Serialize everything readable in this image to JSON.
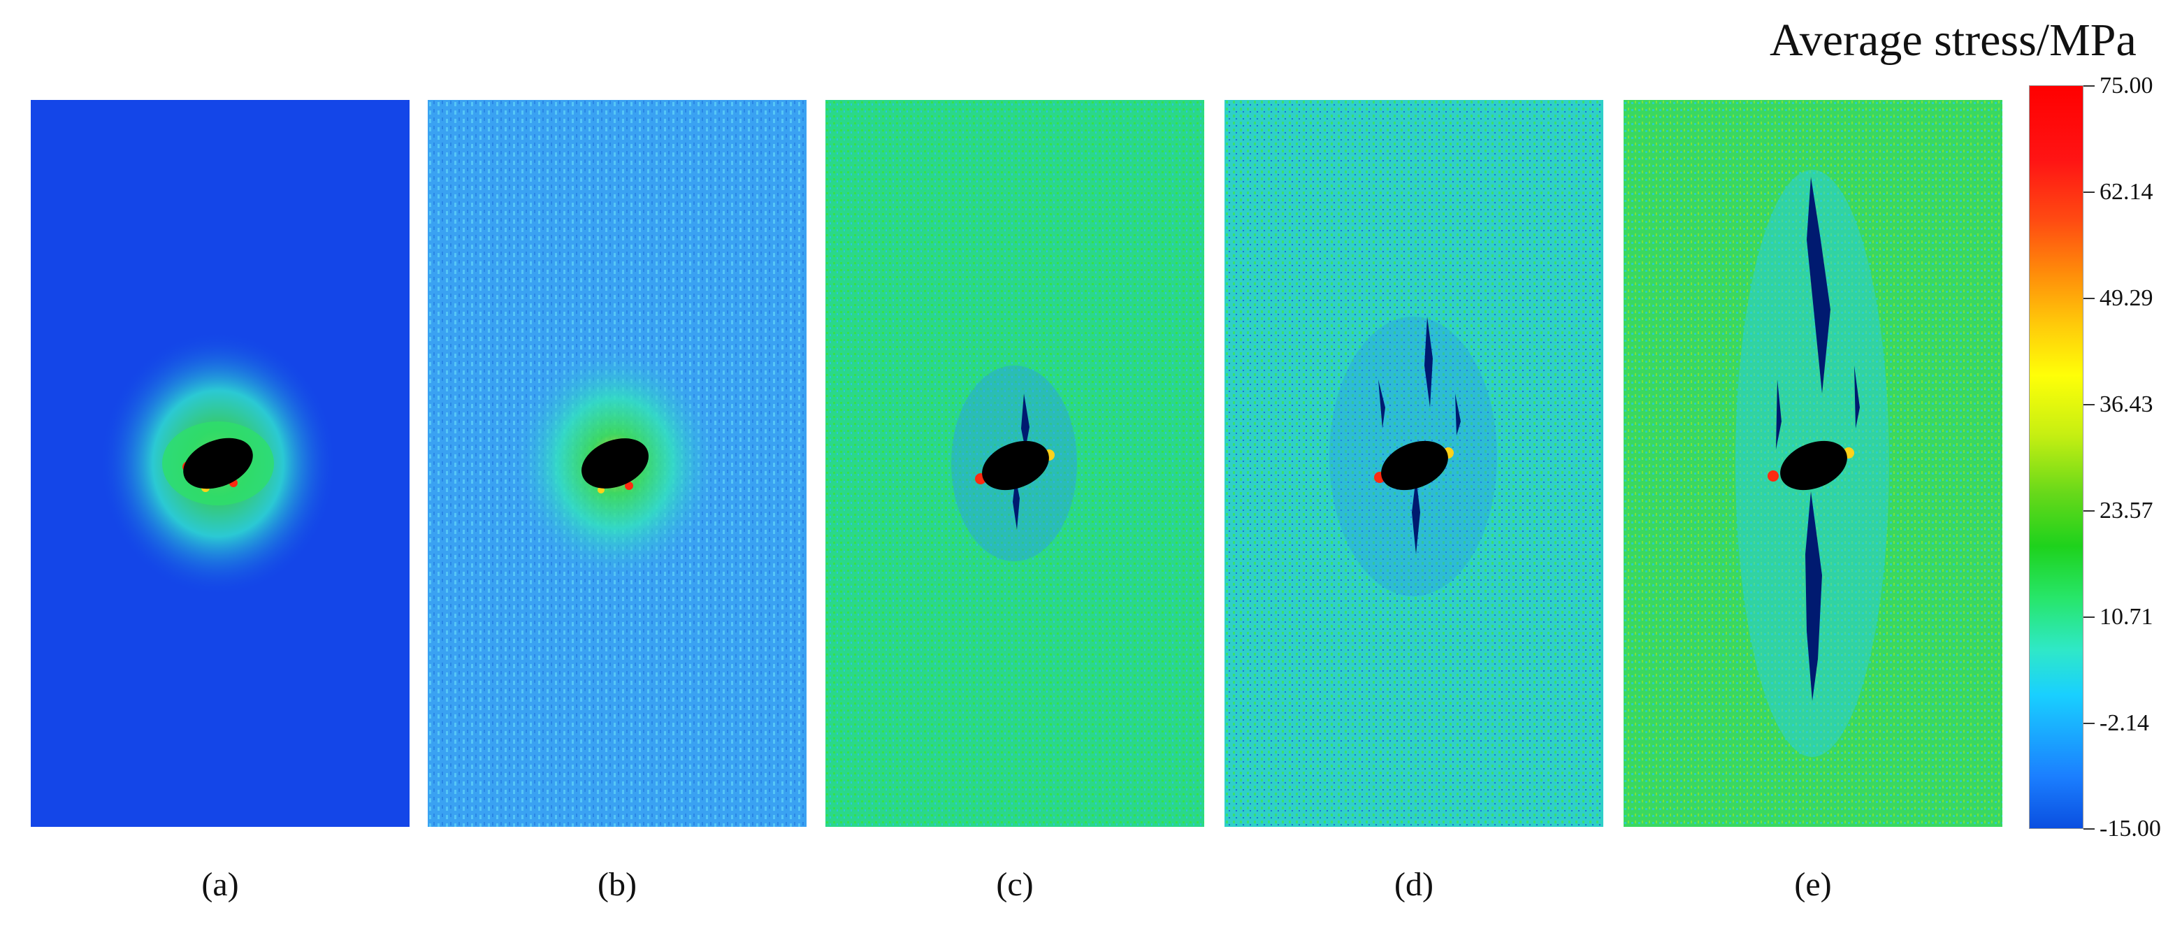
{
  "colorbar": {
    "title": "Average stress/MPa",
    "ticks": [
      "75.00",
      "62.14",
      "49.29",
      "36.43",
      "23.57",
      "10.71",
      "-2.14",
      "-15.00"
    ]
  },
  "panels": [
    {
      "label": "(a)",
      "background": "#1446e8",
      "halo": "#2fe0c8"
    },
    {
      "label": "(b)",
      "background": "#3aa2f2",
      "halo": "#33e0b0"
    },
    {
      "label": "(c)",
      "background": "#2ad88a",
      "halo": "#2fd27a"
    },
    {
      "label": "(d)",
      "background": "#2fd0c8",
      "halo": "#30d8a0"
    },
    {
      "label": "(e)",
      "background": "#3ad860",
      "halo": "#5ee070"
    }
  ],
  "colors": {
    "hole": "#000000",
    "hot": "#ff2a10",
    "warm": "#ffd21a",
    "crack": "#001a70"
  }
}
